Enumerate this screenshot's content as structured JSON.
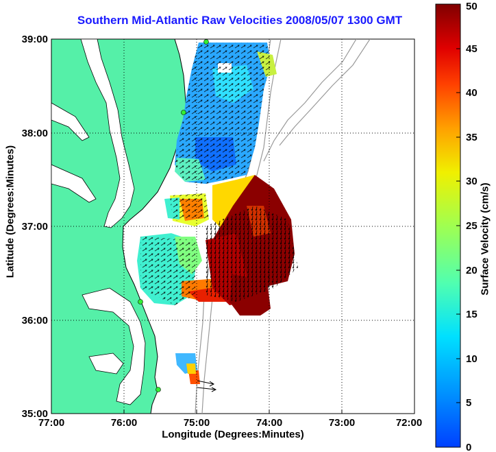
{
  "title": "Southern Mid-Atlantic Raw Velocities 2008/05/07 1300 GMT",
  "xlabel": "Longitude (Degrees:Minutes)",
  "ylabel": "Latitude (Degrees:Minutes)",
  "colorbar": {
    "label": "Surface Velocity (cm/s)",
    "range": [
      0,
      50
    ],
    "ticks": [
      "0",
      "5",
      "10",
      "15",
      "20",
      "25",
      "30",
      "35",
      "40",
      "45",
      "50"
    ]
  },
  "map": {
    "lon_range": [
      -77,
      -72
    ],
    "lat_range": [
      35,
      39
    ],
    "x_ticks": [
      "77:00",
      "76:00",
      "75:00",
      "74:00",
      "73:00",
      "72:00"
    ],
    "y_ticks": [
      "35:00",
      "36:00",
      "37:00",
      "38:00",
      "39:00"
    ],
    "grid": "dotted",
    "land_color": "#55f0a8"
  }
}
